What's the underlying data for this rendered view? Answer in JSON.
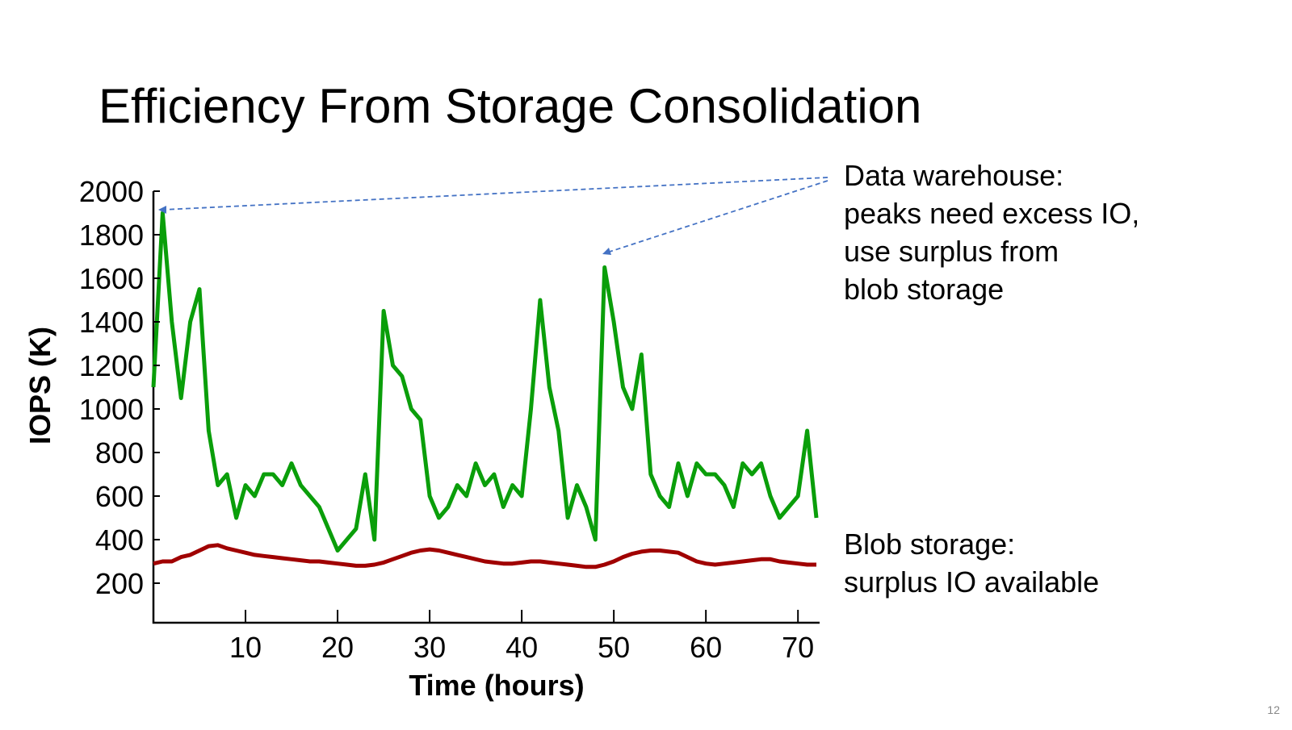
{
  "page_number": 12,
  "chart_data": {
    "type": "line",
    "title": "Efficiency From Storage Consolidation",
    "x_label": "Time (hours)",
    "y_label": "IOPS (K)",
    "xlim": [
      0,
      72
    ],
    "ylim": [
      0,
      2000
    ],
    "xticks": [
      10,
      20,
      30,
      40,
      50,
      60,
      70
    ],
    "yticks": [
      200,
      400,
      600,
      800,
      1000,
      1200,
      1400,
      1600,
      1800,
      2000
    ],
    "x": [
      0,
      1,
      2,
      3,
      4,
      5,
      6,
      7,
      8,
      9,
      10,
      11,
      12,
      13,
      14,
      15,
      16,
      17,
      18,
      19,
      20,
      21,
      22,
      23,
      24,
      25,
      26,
      27,
      28,
      29,
      30,
      31,
      32,
      33,
      34,
      35,
      36,
      37,
      38,
      39,
      40,
      41,
      42,
      43,
      44,
      45,
      46,
      47,
      48,
      49,
      50,
      51,
      52,
      53,
      54,
      55,
      56,
      57,
      58,
      59,
      60,
      61,
      62,
      63,
      64,
      65,
      66,
      67,
      68,
      69,
      70,
      71,
      72
    ],
    "series": [
      {
        "name": "Data warehouse",
        "color": "#0a9e0a",
        "values": [
          1100,
          1900,
          1400,
          1050,
          1400,
          1550,
          900,
          650,
          700,
          500,
          650,
          600,
          700,
          700,
          650,
          750,
          650,
          600,
          550,
          450,
          350,
          400,
          450,
          700,
          400,
          1450,
          1200,
          1150,
          1000,
          950,
          600,
          500,
          550,
          650,
          600,
          750,
          650,
          700,
          550,
          650,
          600,
          1000,
          1500,
          1100,
          900,
          500,
          650,
          550,
          400,
          1650,
          1400,
          1100,
          1000,
          1250,
          700,
          600,
          550,
          750,
          600,
          750,
          700,
          700,
          650,
          550,
          750,
          700,
          750,
          600,
          500,
          550,
          600,
          900,
          500
        ]
      },
      {
        "name": "Blob storage",
        "color": "#a00000",
        "values": [
          290,
          300,
          300,
          320,
          330,
          350,
          370,
          375,
          360,
          350,
          340,
          330,
          325,
          320,
          315,
          310,
          305,
          300,
          300,
          295,
          290,
          285,
          280,
          280,
          285,
          295,
          310,
          325,
          340,
          350,
          355,
          350,
          340,
          330,
          320,
          310,
          300,
          295,
          290,
          290,
          295,
          300,
          300,
          295,
          290,
          285,
          280,
          275,
          275,
          285,
          300,
          320,
          335,
          345,
          350,
          350,
          345,
          340,
          320,
          300,
          290,
          285,
          290,
          295,
          300,
          305,
          310,
          310,
          300,
          295,
          290,
          285,
          285
        ]
      }
    ],
    "annotations": [
      [
        "Data warehouse:",
        "peaks need excess IO,",
        "use surplus from",
        "blob storage"
      ],
      [
        "Blob storage:",
        "surplus IO available"
      ]
    ]
  }
}
